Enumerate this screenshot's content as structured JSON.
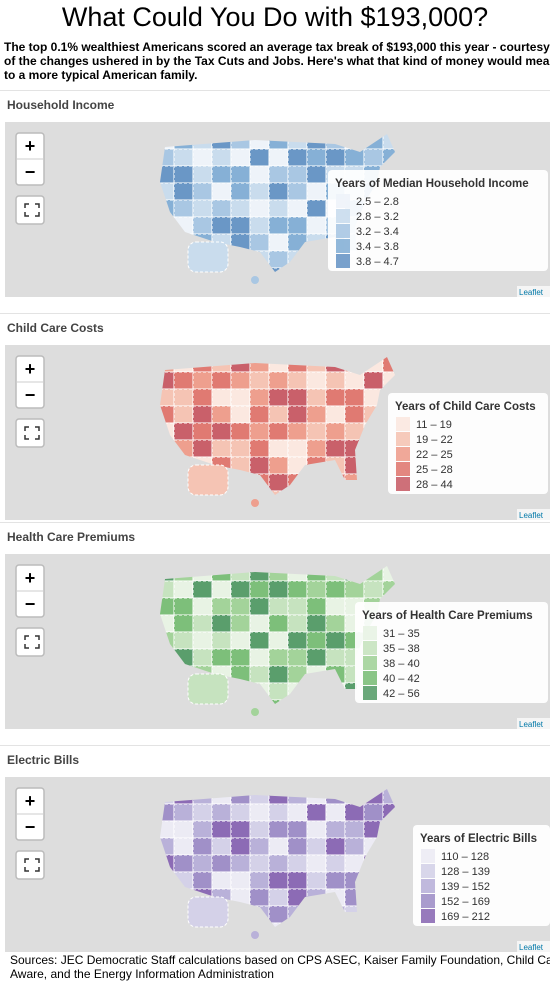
{
  "header": {
    "title": "What Could You Do with $193,000?",
    "intro": "The top 0.1% wealthiest Americans scored an average tax break of $193,000 this year - courtesy of the changes ushered in by the Tax Cuts and Jobs. Here's what that kind of money would mean to a more typical American family."
  },
  "controls": {
    "zoom_in": "+",
    "zoom_out": "−",
    "attribution": "Leaflet"
  },
  "panels": [
    {
      "title": "Household Income",
      "legend_title": "Years of Median Household Income",
      "legend": [
        {
          "label": "2.5 – 2.8",
          "color": "#eef3f9"
        },
        {
          "label": "2.8 – 3.2",
          "color": "#c9dced"
        },
        {
          "label": "3.2 – 3.4",
          "color": "#a9c7e3"
        },
        {
          "label": "3.4 – 3.8",
          "color": "#86b0d6"
        },
        {
          "label": "3.8 – 4.7",
          "color": "#6a97c6"
        }
      ]
    },
    {
      "title": "Child Care Costs",
      "legend_title": "Years of Child Care Costs",
      "legend": [
        {
          "label": "11 – 19",
          "color": "#fbe8e0"
        },
        {
          "label": "19 – 22",
          "color": "#f5c4b4"
        },
        {
          "label": "22 – 25",
          "color": "#ee9f8e"
        },
        {
          "label": "25 – 28",
          "color": "#e07a72"
        },
        {
          "label": "28 – 44",
          "color": "#c9606a"
        }
      ]
    },
    {
      "title": "Health Care Premiums",
      "legend_title": "Years of Health Care Premiums",
      "legend": [
        {
          "label": "31 – 35",
          "color": "#e8f3e4"
        },
        {
          "label": "35 – 38",
          "color": "#c6e3bf"
        },
        {
          "label": "38 – 40",
          "color": "#a3d39a"
        },
        {
          "label": "40 – 42",
          "color": "#7dbf7a"
        },
        {
          "label": "42 – 56",
          "color": "#5a9e6c"
        }
      ]
    },
    {
      "title": "Electric Bills",
      "legend_title": "Years of Electric Bills",
      "legend": [
        {
          "label": "110 – 128",
          "color": "#ecebf4"
        },
        {
          "label": "128 – 139",
          "color": "#d4d1e8"
        },
        {
          "label": "139 – 152",
          "color": "#b9b1d9"
        },
        {
          "label": "152 – 169",
          "color": "#a090c8"
        },
        {
          "label": "169 – 212",
          "color": "#8c6bb5"
        }
      ]
    }
  ],
  "sources": "Sources: JEC Democratic Staff calculations based on CPS ASEC, Kaiser Family Foundation, Child Care Aware, and the Energy Information Administration"
}
